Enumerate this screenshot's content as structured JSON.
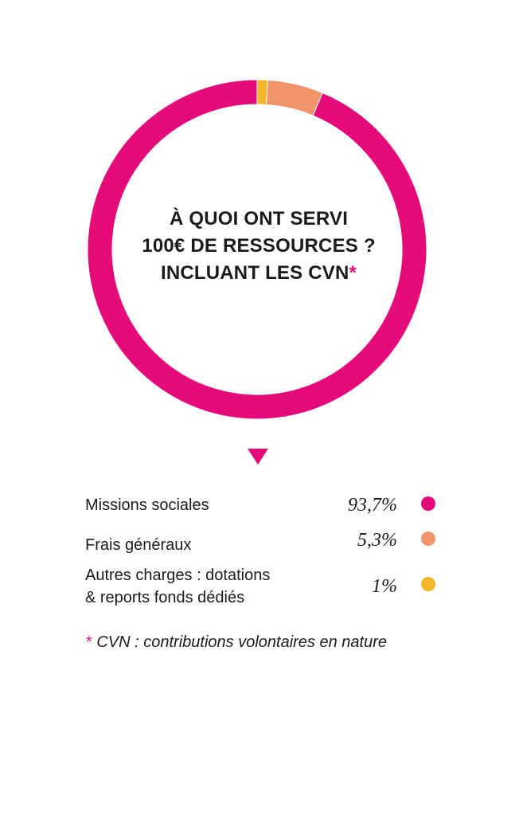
{
  "chart_data": {
    "type": "pie",
    "title_lines": [
      "À QUOI ONT SERVI",
      "100€ DE RESSOURCES ?",
      "INCLUANT LES CVN"
    ],
    "title_mark": "*",
    "series": [
      {
        "name": "Missions sociales",
        "value": 93.7,
        "label": "93,7%",
        "color": "#e6097a"
      },
      {
        "name": "Frais généraux",
        "value": 5.3,
        "label": "5,3%",
        "color": "#ef946a"
      },
      {
        "name_lines": [
          "Autres charges : dotations",
          "& reports fonds dédiés"
        ],
        "value": 1,
        "label": "1%",
        "color": "#f2b626"
      }
    ]
  },
  "footnote": {
    "mark": "*",
    "text": "CVN : contributions volontaires en nature"
  },
  "colors": {
    "accent": "#e6097a"
  }
}
